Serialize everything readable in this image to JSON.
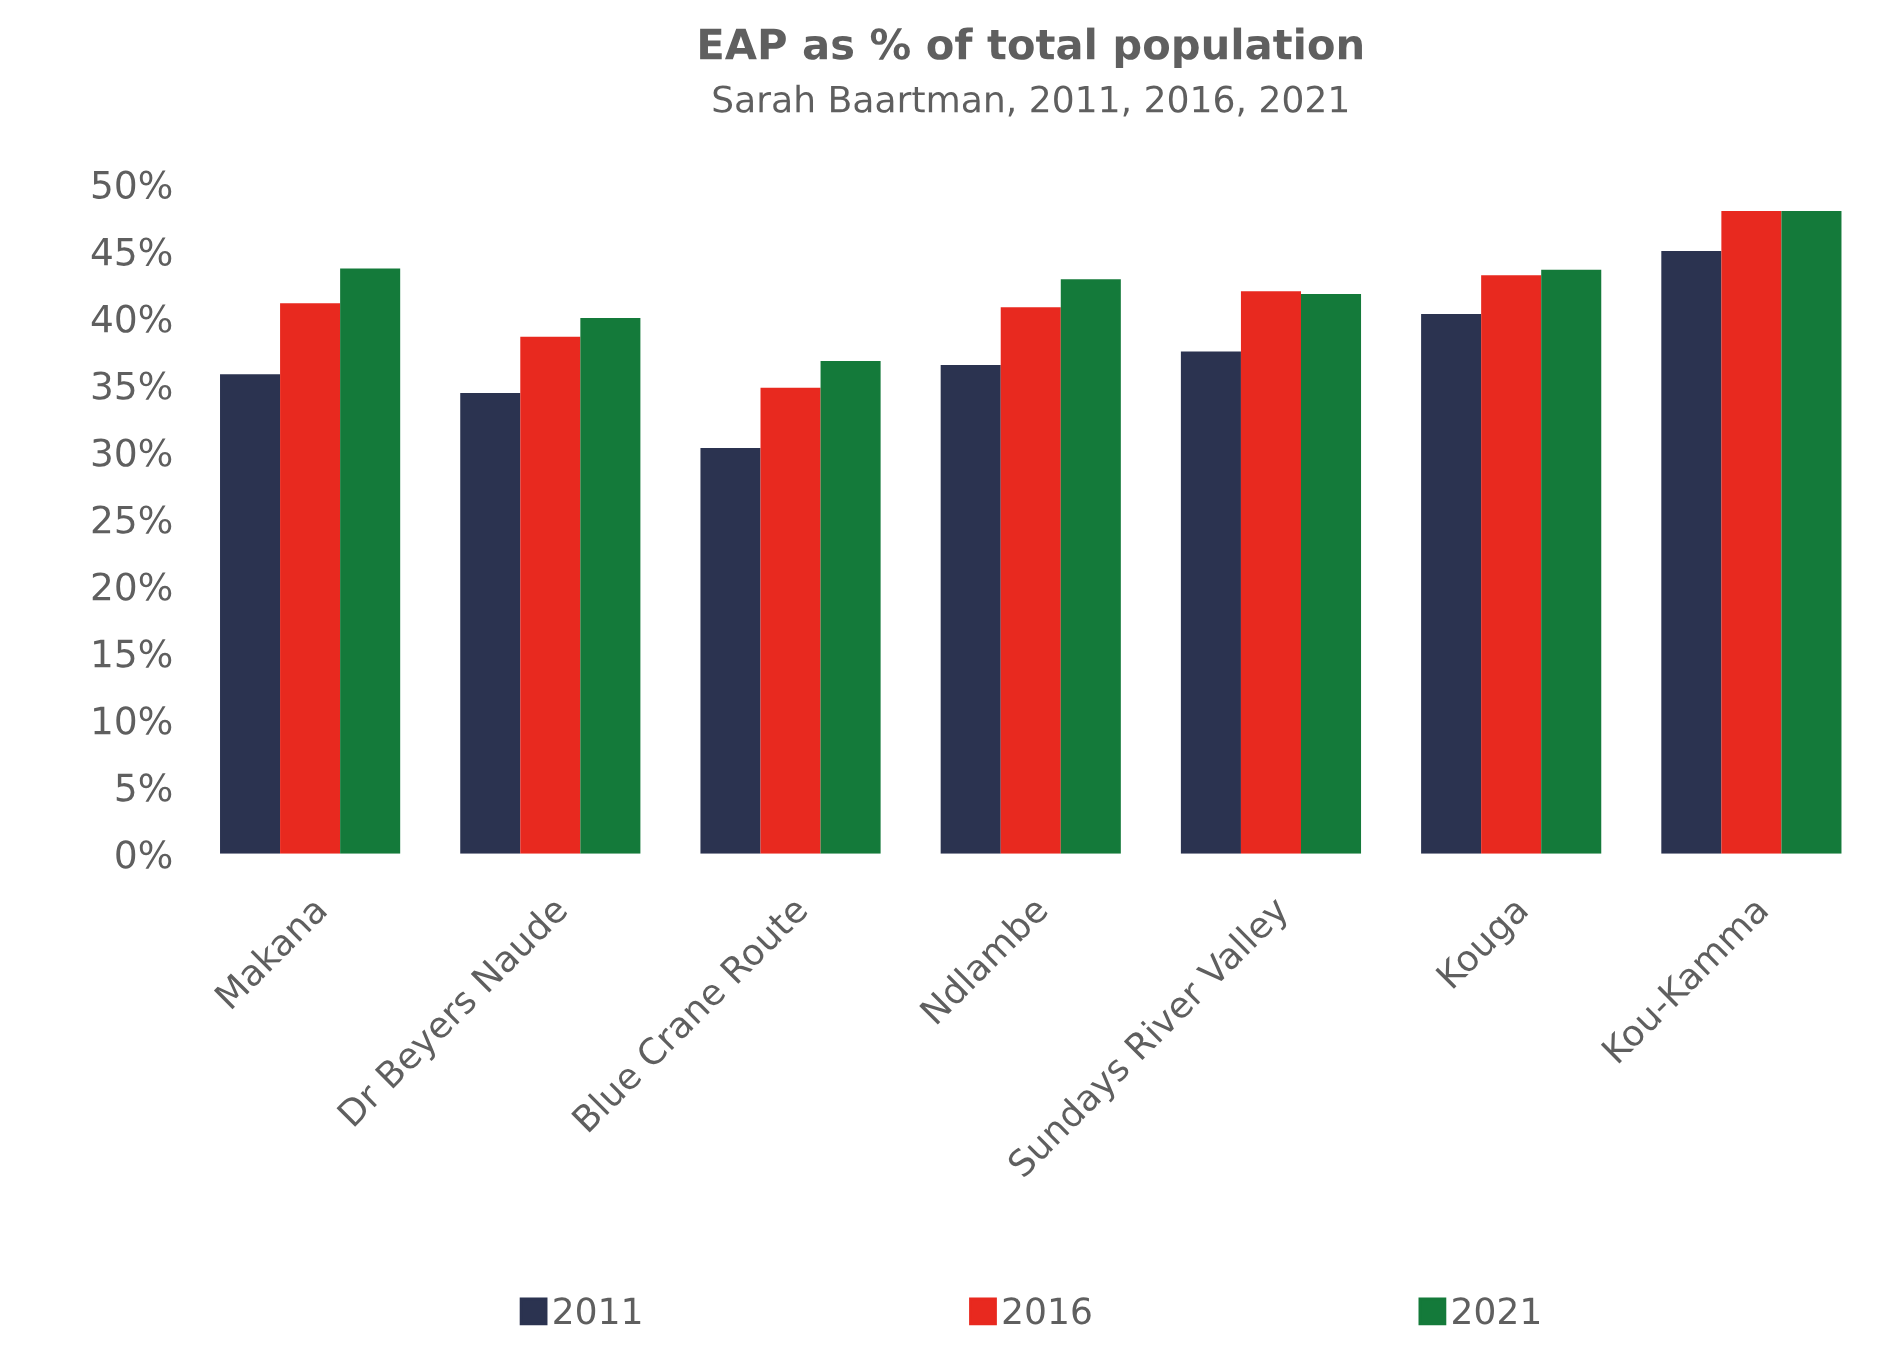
{
  "chart_data": {
    "type": "bar",
    "title": "EAP as % of total population",
    "subtitle": "Sarah Baartman, 2011, 2016, 2021",
    "categories": [
      "Makana",
      "Dr Beyers Naude",
      "Blue Crane Route",
      "Ndlambe",
      "Sundays River Valley",
      "Kouga",
      "Kou-Kamma"
    ],
    "series": [
      {
        "name": "2011",
        "color": "#2b3350",
        "values": [
          35.8,
          34.4,
          30.3,
          36.5,
          37.5,
          40.3,
          45.0
        ]
      },
      {
        "name": "2016",
        "color": "#e8291f",
        "values": [
          41.1,
          38.6,
          34.8,
          40.8,
          42.0,
          43.2,
          48.0
        ]
      },
      {
        "name": "2021",
        "color": "#147a3a",
        "values": [
          43.7,
          40.0,
          36.8,
          42.9,
          41.8,
          43.6,
          48.0
        ]
      }
    ],
    "ylim": [
      0,
      50
    ],
    "yticks": [
      {
        "value": 0,
        "label": "0%"
      },
      {
        "value": 5,
        "label": "5%"
      },
      {
        "value": 10,
        "label": "10%"
      },
      {
        "value": 15,
        "label": "15%"
      },
      {
        "value": 20,
        "label": "20%"
      },
      {
        "value": 25,
        "label": "25%"
      },
      {
        "value": 30,
        "label": "30%"
      },
      {
        "value": 35,
        "label": "35%"
      },
      {
        "value": 40,
        "label": "40%"
      },
      {
        "value": 45,
        "label": "45%"
      },
      {
        "value": 50,
        "label": "50%"
      }
    ],
    "grid": false,
    "legend": "bottom"
  }
}
